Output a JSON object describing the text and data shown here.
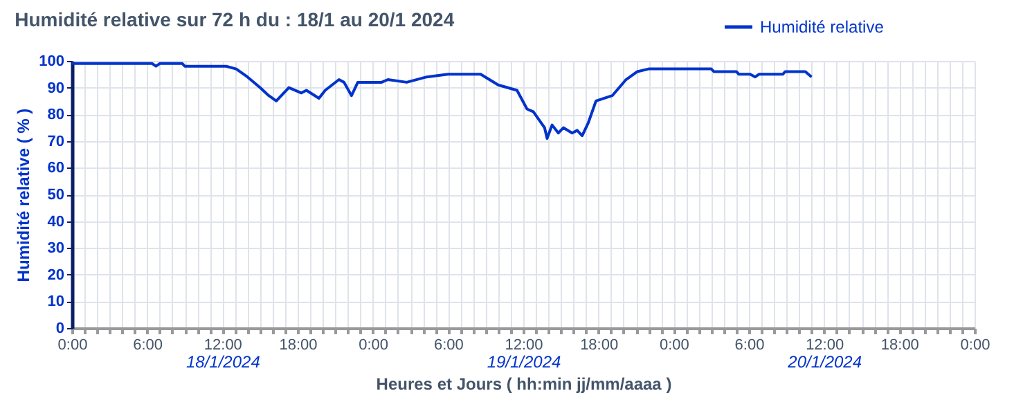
{
  "chart_data": {
    "type": "line",
    "title": "Humidité relative sur 72 h du : 18/1 au 20/1  2024",
    "xlabel": "Heures et Jours ( hh:min  jj/mm/aaaa )",
    "ylabel": "Humidité relative ( % )",
    "x": [
      "2024-01-18T00:00",
      "2024-01-18T06:24",
      "2024-01-18T06:42",
      "2024-01-18T07:00",
      "2024-01-18T08:48",
      "2024-01-18T09:00",
      "2024-01-18T12:18",
      "2024-01-18T13:06",
      "2024-01-18T14:00",
      "2024-01-18T15:00",
      "2024-01-18T15:42",
      "2024-01-18T16:18",
      "2024-01-18T17:18",
      "2024-01-18T18:18",
      "2024-01-18T18:42",
      "2024-01-18T19:42",
      "2024-01-18T20:12",
      "2024-01-18T21:18",
      "2024-01-18T21:42",
      "2024-01-18T22:18",
      "2024-01-18T22:48",
      "2024-01-19T00:42",
      "2024-01-19T01:12",
      "2024-01-19T02:42",
      "2024-01-19T04:18",
      "2024-01-19T06:00",
      "2024-01-19T08:36",
      "2024-01-19T10:00",
      "2024-01-19T11:30",
      "2024-01-19T12:18",
      "2024-01-19T12:48",
      "2024-01-19T13:42",
      "2024-01-19T13:54",
      "2024-01-19T14:18",
      "2024-01-19T14:48",
      "2024-01-19T15:12",
      "2024-01-19T15:54",
      "2024-01-19T16:18",
      "2024-01-19T16:42",
      "2024-01-19T17:12",
      "2024-01-19T17:48",
      "2024-01-19T19:06",
      "2024-01-19T20:12",
      "2024-01-19T21:06",
      "2024-01-19T22:00",
      "2024-01-20T00:24",
      "2024-01-20T03:00",
      "2024-01-20T03:12",
      "2024-01-20T05:00",
      "2024-01-20T05:12",
      "2024-01-20T06:06",
      "2024-01-20T06:30",
      "2024-01-20T06:48",
      "2024-01-20T08:42",
      "2024-01-20T08:54",
      "2024-01-20T10:30",
      "2024-01-20T11:00"
    ],
    "series": [
      {
        "name": "Humidité relative",
        "color": "#0033cc",
        "values": [
          99,
          99,
          98,
          99,
          99,
          98,
          98,
          97,
          94,
          90,
          87,
          85,
          90,
          88,
          89,
          86,
          89,
          93,
          92,
          87,
          92,
          92,
          93,
          92,
          94,
          95,
          95,
          91,
          89,
          82,
          81,
          75,
          71,
          76,
          73,
          75,
          73,
          74,
          72,
          77,
          85,
          87,
          93,
          96,
          97,
          97,
          97,
          96,
          96,
          95,
          95,
          94,
          95,
          95,
          96,
          96,
          94
        ]
      }
    ],
    "xlim": [
      "2024-01-18T00:00",
      "2024-01-21T00:00"
    ],
    "xticks": [
      {
        "value": "2024-01-18T00:00",
        "label": "0:00"
      },
      {
        "value": "2024-01-18T01:00",
        "label": null
      },
      {
        "value": "2024-01-18T02:00",
        "label": null
      },
      {
        "value": "2024-01-18T03:00",
        "label": null
      },
      {
        "value": "2024-01-18T04:00",
        "label": null
      },
      {
        "value": "2024-01-18T05:00",
        "label": null
      },
      {
        "value": "2024-01-18T06:00",
        "label": "6:00"
      },
      {
        "value": "2024-01-18T07:00",
        "label": null
      },
      {
        "value": "2024-01-18T08:00",
        "label": null
      },
      {
        "value": "2024-01-18T09:00",
        "label": null
      },
      {
        "value": "2024-01-18T10:00",
        "label": null
      },
      {
        "value": "2024-01-18T11:00",
        "label": null
      },
      {
        "value": "2024-01-18T12:00",
        "label": "12:00"
      },
      {
        "value": "2024-01-18T13:00",
        "label": null
      },
      {
        "value": "2024-01-18T14:00",
        "label": null
      },
      {
        "value": "2024-01-18T15:00",
        "label": null
      },
      {
        "value": "2024-01-18T16:00",
        "label": null
      },
      {
        "value": "2024-01-18T17:00",
        "label": null
      },
      {
        "value": "2024-01-18T18:00",
        "label": "18:00"
      },
      {
        "value": "2024-01-18T19:00",
        "label": null
      },
      {
        "value": "2024-01-18T20:00",
        "label": null
      },
      {
        "value": "2024-01-18T21:00",
        "label": null
      },
      {
        "value": "2024-01-18T22:00",
        "label": null
      },
      {
        "value": "2024-01-18T23:00",
        "label": null
      },
      {
        "value": "2024-01-19T00:00",
        "label": "0:00"
      },
      {
        "value": "2024-01-19T01:00",
        "label": null
      },
      {
        "value": "2024-01-19T02:00",
        "label": null
      },
      {
        "value": "2024-01-19T03:00",
        "label": null
      },
      {
        "value": "2024-01-19T04:00",
        "label": null
      },
      {
        "value": "2024-01-19T05:00",
        "label": null
      },
      {
        "value": "2024-01-19T06:00",
        "label": "6:00"
      },
      {
        "value": "2024-01-19T07:00",
        "label": null
      },
      {
        "value": "2024-01-19T08:00",
        "label": null
      },
      {
        "value": "2024-01-19T09:00",
        "label": null
      },
      {
        "value": "2024-01-19T10:00",
        "label": null
      },
      {
        "value": "2024-01-19T11:00",
        "label": null
      },
      {
        "value": "2024-01-19T12:00",
        "label": "12:00"
      },
      {
        "value": "2024-01-19T13:00",
        "label": null
      },
      {
        "value": "2024-01-19T14:00",
        "label": null
      },
      {
        "value": "2024-01-19T15:00",
        "label": null
      },
      {
        "value": "2024-01-19T16:00",
        "label": null
      },
      {
        "value": "2024-01-19T17:00",
        "label": null
      },
      {
        "value": "2024-01-19T18:00",
        "label": "18:00"
      },
      {
        "value": "2024-01-19T19:00",
        "label": null
      },
      {
        "value": "2024-01-19T20:00",
        "label": null
      },
      {
        "value": "2024-01-19T21:00",
        "label": null
      },
      {
        "value": "2024-01-19T22:00",
        "label": null
      },
      {
        "value": "2024-01-19T23:00",
        "label": null
      },
      {
        "value": "2024-01-20T00:00",
        "label": "0:00"
      },
      {
        "value": "2024-01-20T01:00",
        "label": null
      },
      {
        "value": "2024-01-20T02:00",
        "label": null
      },
      {
        "value": "2024-01-20T03:00",
        "label": null
      },
      {
        "value": "2024-01-20T04:00",
        "label": null
      },
      {
        "value": "2024-01-20T05:00",
        "label": null
      },
      {
        "value": "2024-01-20T06:00",
        "label": "6:00"
      },
      {
        "value": "2024-01-20T07:00",
        "label": null
      },
      {
        "value": "2024-01-20T08:00",
        "label": null
      },
      {
        "value": "2024-01-20T09:00",
        "label": null
      },
      {
        "value": "2024-01-20T10:00",
        "label": null
      },
      {
        "value": "2024-01-20T11:00",
        "label": null
      },
      {
        "value": "2024-01-20T12:00",
        "label": "12:00"
      },
      {
        "value": "2024-01-20T13:00",
        "label": null
      },
      {
        "value": "2024-01-20T14:00",
        "label": null
      },
      {
        "value": "2024-01-20T15:00",
        "label": null
      },
      {
        "value": "2024-01-20T16:00",
        "label": null
      },
      {
        "value": "2024-01-20T17:00",
        "label": null
      },
      {
        "value": "2024-01-20T18:00",
        "label": "18:00"
      },
      {
        "value": "2024-01-20T19:00",
        "label": null
      },
      {
        "value": "2024-01-20T20:00",
        "label": null
      },
      {
        "value": "2024-01-20T21:00",
        "label": null
      },
      {
        "value": "2024-01-20T22:00",
        "label": null
      },
      {
        "value": "2024-01-20T23:00",
        "label": null
      },
      {
        "value": "2024-01-21T00:00",
        "label": "0:00"
      }
    ],
    "x2lim": [
      "2024-01-18T00:00",
      "2024-01-21T00:00"
    ],
    "x2ticks": [
      {
        "value": "2024-01-18T12:00",
        "label": "18/1/2024"
      },
      {
        "value": "2024-01-19T12:00",
        "label": "19/1/2024"
      },
      {
        "value": "2024-01-20T12:00",
        "label": "20/1/2024"
      }
    ],
    "ylim": [
      0,
      100
    ],
    "yticks": [
      0,
      10,
      20,
      30,
      40,
      50,
      60,
      70,
      80,
      90,
      100
    ],
    "grid": true,
    "legend": "top right",
    "marker": "none",
    "line_style": "solid"
  }
}
